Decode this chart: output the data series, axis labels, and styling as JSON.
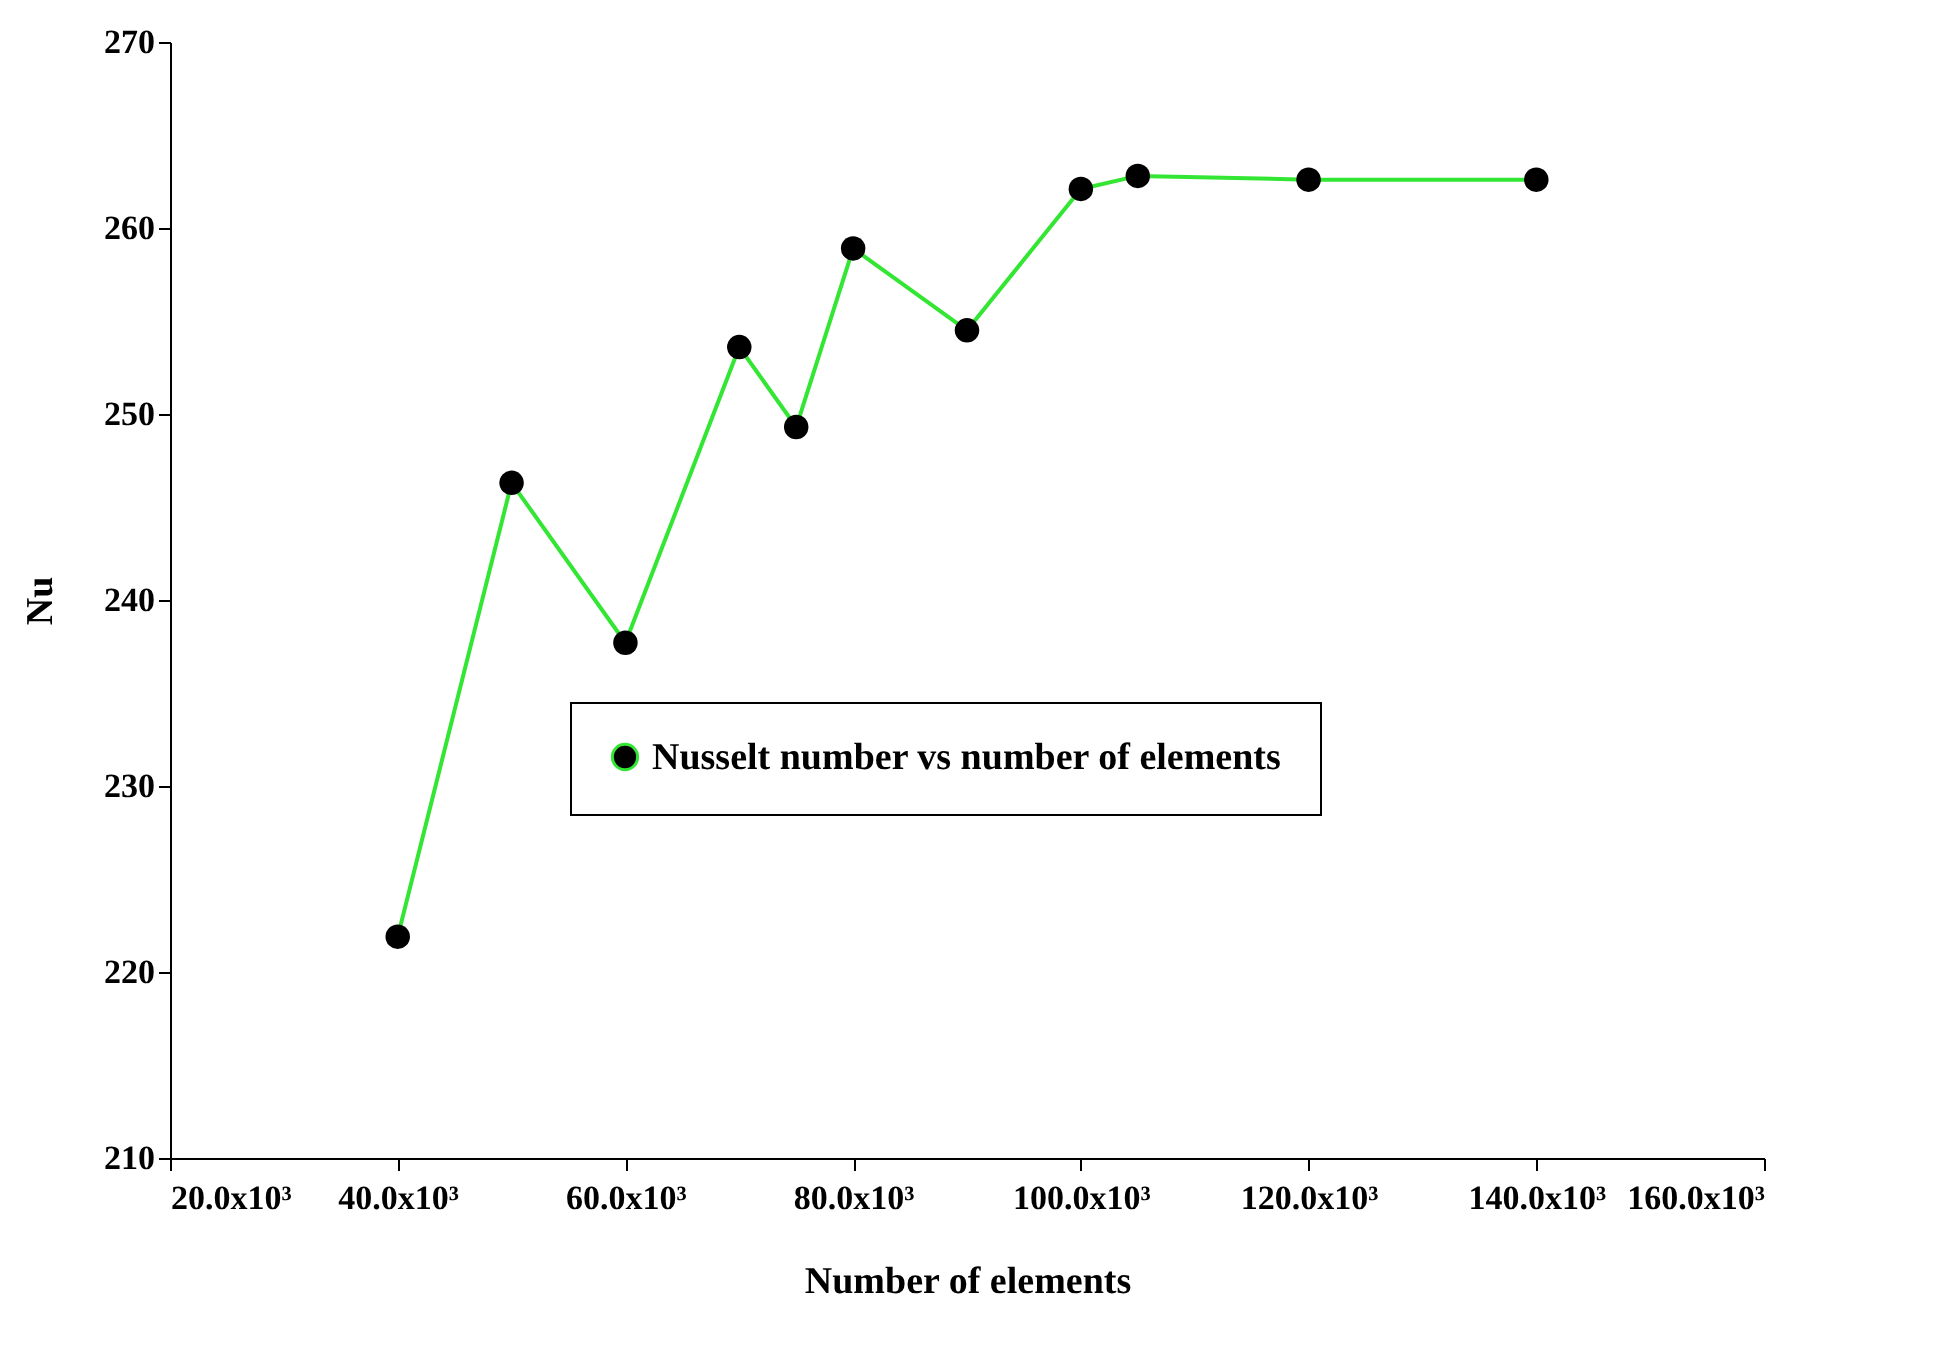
{
  "chart_data": {
    "type": "line",
    "xlabel": "Number of elements",
    "ylabel": "Nu",
    "x": [
      40000,
      50000,
      60000,
      70000,
      75000,
      80000,
      90000,
      100000,
      105000,
      120000,
      140000
    ],
    "series": [
      {
        "name": "Nusselt number vs number of elements",
        "color": "#33e633",
        "values": [
          221.9,
          246.3,
          237.7,
          253.6,
          249.3,
          258.9,
          254.5,
          262.1,
          262.8,
          262.6,
          262.6
        ]
      }
    ],
    "xlim": [
      20000,
      160000
    ],
    "xticks": [
      {
        "value": 20000,
        "label": "20.0x10³"
      },
      {
        "value": 40000,
        "label": "40.0x10³"
      },
      {
        "value": 60000,
        "label": "60.0x10³"
      },
      {
        "value": 80000,
        "label": "80.0x10³"
      },
      {
        "value": 100000,
        "label": "100.0x10³"
      },
      {
        "value": 120000,
        "label": "120.0x10³"
      },
      {
        "value": 140000,
        "label": "140.0x10³"
      },
      {
        "value": 160000,
        "label": "160.0x10³"
      }
    ],
    "ylim": [
      210,
      270
    ],
    "yticks": [
      210,
      220,
      230,
      240,
      250,
      260,
      270
    ],
    "marker": "circle",
    "legend": "right",
    "grid": false
  }
}
